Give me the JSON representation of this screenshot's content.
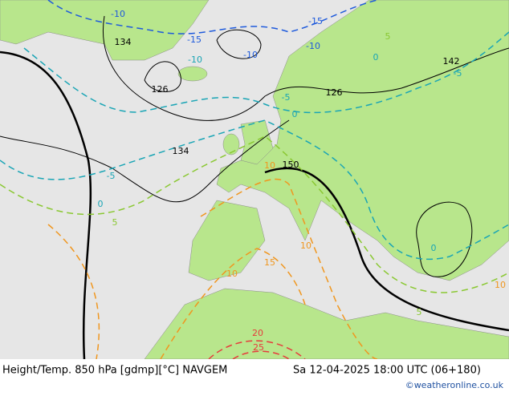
{
  "map": {
    "contour_labels": [
      "-10",
      "-15",
      "-15",
      "134",
      "-10",
      "-10",
      "-10",
      "126",
      "126",
      "142",
      "134",
      "-5",
      "0",
      "-5",
      "0",
      "5",
      "10",
      "150",
      "15",
      "10",
      "10",
      "20",
      "25",
      "-5",
      "0",
      "5",
      "0",
      "10",
      "5"
    ],
    "footer": {
      "title": "Height/Temp. 850 hPa [gdmp][°C] NAVGEM",
      "time": "Sa 12-04-2025 18:00 UTC (06+180)",
      "credit": "©weatheronline.co.uk"
    }
  }
}
